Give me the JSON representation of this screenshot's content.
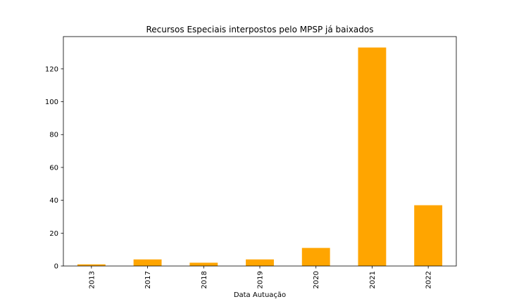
{
  "chart_data": {
    "type": "bar",
    "title": "Recursos Especiais interpostos pelo MPSP já baixados",
    "xlabel": "Data Autuação",
    "ylabel": "",
    "categories": [
      "2013",
      "2017",
      "2018",
      "2019",
      "2020",
      "2021",
      "2022"
    ],
    "values": [
      1,
      4,
      2,
      4,
      11,
      133,
      37
    ],
    "ylim": [
      0,
      139.65
    ],
    "yticks": [
      0,
      20,
      40,
      60,
      80,
      100,
      120
    ],
    "bar_color": "#ffa500",
    "grid": false,
    "legend": "none"
  }
}
